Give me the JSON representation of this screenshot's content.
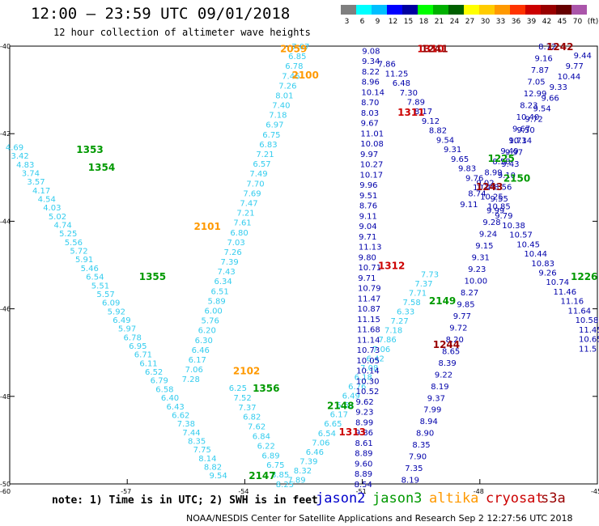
{
  "header": {
    "title": "12:00 – 23:59 UTC 09/01/2018",
    "subtitle": "12 hour collection of altimeter wave heights"
  },
  "colorbar": {
    "labels": [
      "3",
      "6",
      "9",
      "12",
      "15",
      "18",
      "21",
      "24",
      "27",
      "30",
      "33",
      "36",
      "39",
      "42",
      "45",
      "70",
      "(ft)"
    ],
    "colors": [
      "#7f7f7f",
      "#00ffff",
      "#00bfff",
      "#0000ff",
      "#0000a0",
      "#00ff00",
      "#00b000",
      "#006000",
      "#ffff00",
      "#ffcc00",
      "#ff9900",
      "#ff3300",
      "#cc0000",
      "#990000",
      "#660000",
      "#aa55aa"
    ]
  },
  "axes": {
    "lat_labels": [
      "-40",
      "-42",
      "-44",
      "-46",
      "-48",
      "-50"
    ],
    "lon_labels": [
      "-60",
      "-57",
      "-54",
      "-51",
      "-48",
      "-45"
    ]
  },
  "legend": {
    "note": "note:  1) Time is in UTC; 2) SWH is in feet",
    "satellites": [
      {
        "name": "jason2",
        "color": "#0000cc"
      },
      {
        "name": "jason3",
        "color": "#009900"
      },
      {
        "name": "altika",
        "color": "#ff9900"
      },
      {
        "name": "cryosat",
        "color": "#cc0000"
      },
      {
        "name": "s3a",
        "color": "#990000"
      }
    ]
  },
  "footer": "NOAA/NESDIS Center for Satellite Applications and Research     Sep  2 12:27:56 UTC 2018",
  "map_data": {
    "time_labels": [
      {
        "t": "1353",
        "color": "#009900",
        "lon": -58.3,
        "lat": -42.35
      },
      {
        "t": "1354",
        "color": "#009900",
        "lon": -58.0,
        "lat": -42.75
      },
      {
        "t": "1355",
        "color": "#009900",
        "lon": -56.7,
        "lat": -45.25
      },
      {
        "t": "1356",
        "color": "#009900",
        "lon": -53.8,
        "lat": -47.8
      },
      {
        "t": "2147",
        "color": "#009900",
        "lon": -53.9,
        "lat": -49.8
      },
      {
        "t": "2148",
        "color": "#009900",
        "lon": -51.9,
        "lat": -48.2
      },
      {
        "t": "2149",
        "color": "#009900",
        "lon": -49.3,
        "lat": -45.8
      },
      {
        "t": "2150",
        "color": "#009900",
        "lon": -47.4,
        "lat": -43.0
      },
      {
        "t": "1225",
        "color": "#009900",
        "lon": -47.8,
        "lat": -42.55
      },
      {
        "t": "1226",
        "color": "#009900",
        "lon": -45.0,
        "lat": -45.25
      },
      {
        "t": "2059",
        "color": "#ff9900",
        "lon": -53.1,
        "lat": -40.05
      },
      {
        "t": "2100",
        "color": "#ff9900",
        "lon": -52.8,
        "lat": -40.65
      },
      {
        "t": "2101",
        "color": "#ff9900",
        "lon": -55.3,
        "lat": -44.1
      },
      {
        "t": "2102",
        "color": "#ff9900",
        "lon": -54.3,
        "lat": -47.4
      },
      {
        "t": "1311",
        "color": "#cc0000",
        "lon": -50.1,
        "lat": -41.5
      },
      {
        "t": "1312",
        "color": "#cc0000",
        "lon": -50.6,
        "lat": -45.0
      },
      {
        "t": "1313",
        "color": "#cc0000",
        "lon": -51.6,
        "lat": -48.8
      },
      {
        "t": "1310",
        "color": "#cc0000",
        "lon": -49.6,
        "lat": -40.05
      },
      {
        "t": "1244",
        "color": "#990000",
        "lon": -49.2,
        "lat": -46.8
      },
      {
        "t": "1242",
        "color": "#990000",
        "lon": -46.3,
        "lat": -40.0
      },
      {
        "t": "1243",
        "color": "#990000",
        "lon": -48.1,
        "lat": -43.2
      },
      {
        "t": "1241",
        "color": "#990000",
        "lon": -49.5,
        "lat": -40.05
      }
    ],
    "tracks": [
      {
        "sat": "jason3",
        "color": "#33ccee",
        "lon0": -59.9,
        "lat0": -42.3,
        "lon1": -54.7,
        "lat1": -49.8,
        "values": [
          "4.69",
          "3.42",
          "4.83",
          "3.74",
          "3.57",
          "4.17",
          "4.54",
          "4.03",
          "5.02",
          "4.74",
          "5.25",
          "5.56",
          "5.72",
          "5.91",
          "5.46",
          "6.54",
          "5.51",
          "5.57",
          "6.09",
          "5.92",
          "6.49",
          "5.97",
          "6.78",
          "6.95",
          "6.71",
          "6.11",
          "6.52",
          "6.79",
          "6.58",
          "6.40",
          "6.43",
          "6.62",
          "7.38",
          "7.44",
          "8.35",
          "7.75",
          "8.14",
          "8.82",
          "9.54"
        ]
      },
      {
        "sat": "altika",
        "color": "#33ccee",
        "lon0": -52.6,
        "lat0": -40.0,
        "lon1": -55.4,
        "lat1": -47.6,
        "values": [
          "7.07",
          "6.85",
          "6.78",
          "7.46",
          "7.26",
          "8.01",
          "7.40",
          "7.18",
          "6.97",
          "6.75",
          "6.83",
          "7.21",
          "6.57",
          "7.49",
          "7.70",
          "7.69",
          "7.47",
          "7.21",
          "7.61",
          "6.80",
          "7.03",
          "7.26",
          "7.39",
          "7.43",
          "6.34",
          "6.51",
          "5.89",
          "6.00",
          "5.76",
          "6.20",
          "6.30",
          "6.46",
          "6.17",
          "7.06",
          "7.28"
        ]
      },
      {
        "sat": "jason3b",
        "color": "#33ccee",
        "lon0": -54.2,
        "lat0": -47.8,
        "lon1": -53.0,
        "lat1": -50.0,
        "values": [
          "6.25",
          "7.52",
          "7.37",
          "6.82",
          "7.62",
          "6.84",
          "6.22",
          "6.89",
          "6.75",
          "8.85",
          "8.25"
        ]
      },
      {
        "sat": "jason3c",
        "color": "#33ccee",
        "lon0": -52.7,
        "lat0": -49.9,
        "lon1": -49.3,
        "lat1": -45.2,
        "values": [
          "7.89",
          "8.32",
          "7.39",
          "6.46",
          "7.06",
          "6.54",
          "6.65",
          "6.17",
          "6.63",
          "6.49",
          "6.76",
          "6.18",
          "7.08",
          "6.42",
          "7.06",
          "7.86",
          "7.18",
          "7.27",
          "6.33",
          "7.58",
          "7.71",
          "7.37",
          "7.73"
        ]
      },
      {
        "sat": "jason2",
        "color": "#0000aa",
        "lon0": -50.8,
        "lat0": -40.1,
        "lon1": -51.0,
        "lat1": -50.0,
        "values": [
          "9.08",
          "9.34",
          "8.22",
          "8.96",
          "10.14",
          "8.70",
          "8.03",
          "9.67",
          "11.01",
          "10.08",
          "9.97",
          "10.27",
          "10.17",
          "9.96",
          "9.51",
          "8.76",
          "9.11",
          "9.04",
          "9.71",
          "11.13",
          "9.80",
          "10.71",
          "9.71",
          "10.79",
          "11.47",
          "10.87",
          "11.15",
          "11.68",
          "11.14",
          "10.73",
          "10.05",
          "10.14",
          "10.30",
          "10.52",
          "9.62",
          "9.23",
          "8.99",
          "9.86",
          "8.61",
          "8.89",
          "9.60",
          "8.89",
          "8.54"
        ]
      },
      {
        "sat": "jason2b",
        "color": "#0000aa",
        "lon0": -49.8,
        "lat0": -49.9,
        "lon1": -46.3,
        "lat1": -40.0,
        "values": [
          "8.19",
          "7.35",
          "7.90",
          "8.35",
          "8.90",
          "8.94",
          "7.99",
          "9.37",
          "8.19",
          "9.22",
          "8.39",
          "8.65",
          "8.20",
          "9.72",
          "9.77",
          "9.85",
          "8.27",
          "10.00",
          "9.23",
          "9.31",
          "9.15",
          "9.24",
          "9.28",
          "9.99",
          "9.55",
          "8.56",
          "9.10",
          "9.43",
          "9.97",
          "9.73",
          "9.67",
          "10.40",
          "8.23",
          "12.99",
          "7.05",
          "7.87",
          "9.16",
          "8.72"
        ]
      },
      {
        "sat": "jason2c",
        "color": "#0000aa",
        "lon0": -50.4,
        "lat0": -40.4,
        "lon1": -44.8,
        "lat1": -46.9,
        "values": [
          "7.86",
          "11.25",
          "6.48",
          "7.30",
          "7.89",
          "8.17",
          "9.12",
          "8.82",
          "9.54",
          "9.31",
          "9.65",
          "9.83",
          "9.76",
          "10.44",
          "10.25",
          "10.85",
          "9.79",
          "10.38",
          "10.57",
          "10.45",
          "10.44",
          "10.83",
          "9.26",
          "10.74",
          "11.46",
          "11.16",
          "11.64",
          "10.58",
          "11.45",
          "10.65",
          "11.5"
        ]
      },
      {
        "sat": "jason2d",
        "color": "#0000aa",
        "lon0": -45.4,
        "lat0": -40.2,
        "lon1": -48.3,
        "lat1": -43.6,
        "values": [
          "9.44",
          "9.77",
          "10.44",
          "9.33",
          "9.66",
          "9.54",
          "9.72",
          "9.50",
          "10.14",
          "9.49",
          "8.58",
          "8.99",
          "9.02",
          "8.74",
          "9.11"
        ]
      }
    ]
  }
}
